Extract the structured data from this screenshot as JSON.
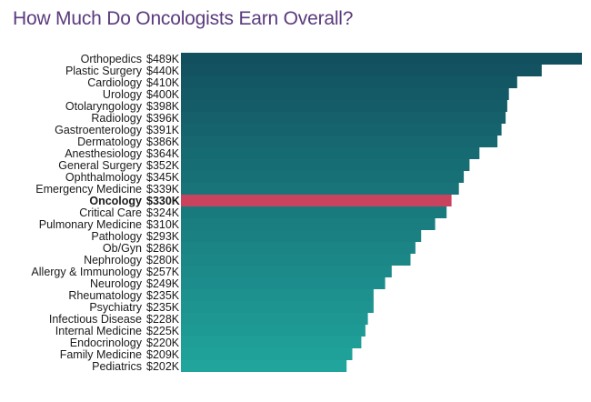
{
  "chart_data": {
    "type": "bar",
    "orientation": "horizontal",
    "title": "How Much Do Oncologists Earn Overall?",
    "xlabel": "",
    "ylabel": "",
    "grid": false,
    "xlim": [
      0,
      489
    ],
    "unit": "thousand USD",
    "categories": [
      "Orthopedics",
      "Plastic Surgery",
      "Cardiology",
      "Urology",
      "Otolaryngology",
      "Radiology",
      "Gastroenterology",
      "Dermatology",
      "Anesthesiology",
      "General Surgery",
      "Ophthalmology",
      "Emergency Medicine",
      "Oncology",
      "Critical Care",
      "Pulmonary Medicine",
      "Pathology",
      "Ob/Gyn",
      "Nephrology",
      "Allergy & Immunology",
      "Neurology",
      "Rheumatology",
      "Psychiatry",
      "Infectious Disease",
      "Internal Medicine",
      "Endocrinology",
      "Family Medicine",
      "Pediatrics"
    ],
    "values": [
      489,
      440,
      410,
      400,
      398,
      396,
      391,
      386,
      364,
      352,
      345,
      339,
      330,
      324,
      310,
      293,
      286,
      280,
      257,
      249,
      235,
      235,
      228,
      225,
      220,
      209,
      202
    ],
    "value_labels": [
      "$489K",
      "$440K",
      "$410K",
      "$400K",
      "$398K",
      "$396K",
      "$391K",
      "$386K",
      "$364K",
      "$352K",
      "$345K",
      "$339K",
      "$330K",
      "$324K",
      "$310K",
      "$293K",
      "$286K",
      "$280K",
      "$257K",
      "$249K",
      "$235K",
      "$235K",
      "$228K",
      "$225K",
      "$220K",
      "$209K",
      "$202K"
    ],
    "highlight": "Oncology",
    "colors": {
      "gradient_top": "#12505f",
      "gradient_bottom": "#20a49c",
      "highlight": "#c9435f",
      "highlight_text": "#c9435f",
      "label": "#1a1a1a",
      "title": "#5a3a7e"
    }
  }
}
